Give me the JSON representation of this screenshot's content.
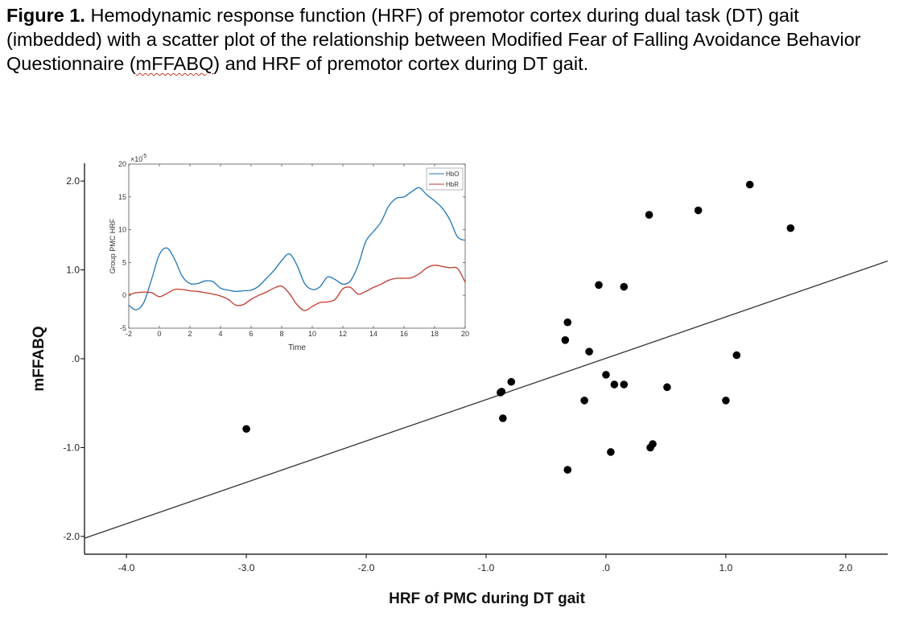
{
  "caption": {
    "label": "Figure 1.",
    "text_part1": " Hemodynamic response function (HRF) of premotor cortex during dual task (DT) gait (imbedded) with a scatter plot of the relationship between Modified Fear of Falling Avoidance Behavior Questionnaire (",
    "text_underlined": "mFFABQ",
    "text_part2": ") and HRF of premotor cortex during DT gait."
  },
  "chart_data": [
    {
      "type": "scatter",
      "xlabel": "HRF of PMC during DT gait",
      "ylabel": "mFFABQ",
      "xlim": [
        -4.35,
        2.35
      ],
      "ylim": [
        -2.2,
        2.2
      ],
      "x_ticks": [
        -4.0,
        -3.0,
        -2.0,
        -1.0,
        0.0,
        1.0,
        2.0
      ],
      "x_tick_labels": [
        "-4.0",
        "-3.0",
        "-2.0",
        "-1.0",
        ".0",
        "1.0",
        "2.0"
      ],
      "y_ticks": [
        2.0,
        1.0,
        0.0,
        -1.0,
        -2.0
      ],
      "y_tick_labels": [
        "2.0",
        "1.0",
        ".0",
        "-1.0",
        "-2.0"
      ],
      "grid": false,
      "points": [
        {
          "x": -3.0,
          "y": -0.79
        },
        {
          "x": -0.87,
          "y": -0.37
        },
        {
          "x": -0.88,
          "y": -0.38
        },
        {
          "x": -0.86,
          "y": -0.67
        },
        {
          "x": -0.79,
          "y": -0.26
        },
        {
          "x": -0.34,
          "y": 0.21
        },
        {
          "x": -0.32,
          "y": 0.41
        },
        {
          "x": -0.32,
          "y": -1.25
        },
        {
          "x": -0.18,
          "y": -0.47
        },
        {
          "x": -0.14,
          "y": 0.08
        },
        {
          "x": -0.06,
          "y": 0.83
        },
        {
          "x": 0.0,
          "y": -0.18
        },
        {
          "x": 0.04,
          "y": -1.05
        },
        {
          "x": 0.07,
          "y": -0.29
        },
        {
          "x": 0.15,
          "y": 0.81
        },
        {
          "x": 0.15,
          "y": -0.29
        },
        {
          "x": 0.36,
          "y": 1.62
        },
        {
          "x": 0.37,
          "y": -1.0
        },
        {
          "x": 0.39,
          "y": -0.96
        },
        {
          "x": 0.51,
          "y": -0.32
        },
        {
          "x": 0.77,
          "y": 1.67
        },
        {
          "x": 1.0,
          "y": -0.47
        },
        {
          "x": 1.09,
          "y": 0.04
        },
        {
          "x": 1.2,
          "y": 1.96
        },
        {
          "x": 1.54,
          "y": 1.47
        }
      ],
      "fit_line": {
        "x": [
          -4.35,
          2.35
        ],
        "y": [
          -2.02,
          1.1
        ]
      },
      "point_color": "#000000",
      "line_color": "#333333"
    },
    {
      "type": "line",
      "xlabel": "Time",
      "ylabel": "Group PMC HRF",
      "y_exponent_label": "×10",
      "y_exponent": "-5",
      "xlim": [
        -2,
        20
      ],
      "ylim": [
        -5,
        20
      ],
      "x_ticks": [
        -2,
        0,
        2,
        4,
        6,
        8,
        10,
        12,
        14,
        16,
        18,
        20
      ],
      "x_tick_labels": [
        "-2",
        "0",
        "2",
        "4",
        "6",
        "8",
        "10",
        "12",
        "14",
        "16",
        "18",
        "20"
      ],
      "y_ticks": [
        -5,
        0,
        5,
        10,
        15,
        20
      ],
      "y_tick_labels": [
        "-5",
        "0",
        "5",
        "10",
        "15",
        "20"
      ],
      "legend_position": "top-right",
      "grid": false,
      "x": [
        -2,
        -1.5,
        -1,
        -0.5,
        0,
        0.5,
        1,
        1.5,
        2,
        2.5,
        3,
        3.5,
        4,
        4.5,
        5,
        5.5,
        6,
        6.5,
        7,
        7.5,
        8,
        8.5,
        9,
        9.5,
        10,
        10.5,
        11,
        11.5,
        12,
        12.5,
        13,
        13.5,
        14,
        14.5,
        15,
        15.5,
        16,
        16.5,
        17,
        17.5,
        18,
        18.5,
        19,
        19.5,
        20
      ],
      "series": [
        {
          "name": "HbO",
          "color": "#1f77b4",
          "values": [
            -1.5,
            -2.2,
            -1.0,
            2.5,
            6.2,
            7.2,
            5.5,
            2.9,
            1.8,
            1.8,
            2.2,
            2.1,
            1.1,
            0.8,
            0.6,
            0.7,
            0.8,
            1.4,
            2.6,
            3.8,
            5.3,
            6.3,
            4.6,
            1.8,
            0.9,
            1.3,
            2.8,
            2.4,
            1.7,
            2.2,
            4.6,
            8.2,
            9.7,
            11.2,
            13.6,
            14.8,
            15.0,
            15.8,
            16.4,
            15.3,
            14.4,
            13.3,
            11.5,
            8.9,
            8.4
          ]
        },
        {
          "name": "HbR",
          "color": "#c0392b",
          "values": [
            0.1,
            0.4,
            0.5,
            0.4,
            -0.2,
            0.3,
            0.9,
            0.9,
            0.7,
            0.6,
            0.4,
            0.2,
            -0.1,
            -0.6,
            -1.5,
            -1.4,
            -0.6,
            0.0,
            0.5,
            1.1,
            1.4,
            0.3,
            -1.4,
            -2.3,
            -1.7,
            -1.1,
            -1.0,
            -0.6,
            1.0,
            1.2,
            0.2,
            0.6,
            1.2,
            1.7,
            2.3,
            2.6,
            2.6,
            2.7,
            3.3,
            4.2,
            4.6,
            4.4,
            4.2,
            4.1,
            2.0
          ]
        }
      ]
    }
  ]
}
